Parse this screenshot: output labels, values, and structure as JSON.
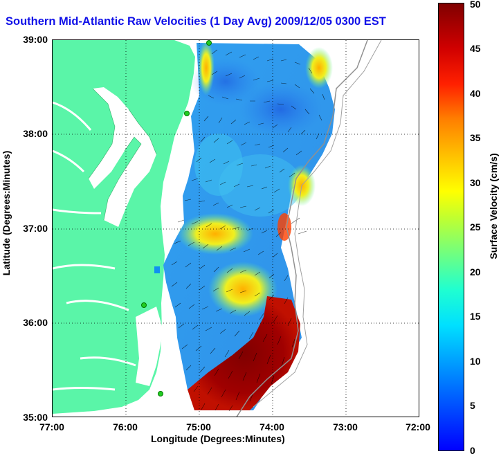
{
  "title": "Southern Mid-Atlantic Raw Velocities (1 Day Avg) 2009/12/05 0300 EST",
  "axes": {
    "xlabel": "Longitude (Degrees:Minutes)",
    "ylabel": "Latitude (Degrees:Minutes)",
    "xticks": [
      "77:00",
      "76:00",
      "75:00",
      "74:00",
      "73:00",
      "72:00"
    ],
    "yticks": [
      "39:00",
      "38:00",
      "37:00",
      "36:00",
      "35:00"
    ]
  },
  "colorbar": {
    "label": "Surface Velocity (cm/s)",
    "ticks": [
      "50",
      "45",
      "40",
      "35",
      "30",
      "25",
      "20",
      "15",
      "10",
      "5",
      "0"
    ],
    "range": [
      0,
      50
    ]
  },
  "colors": {
    "land": "#5af5a8",
    "water": "#ffffff",
    "title": "#1010e8",
    "station": "#22cc22"
  }
}
